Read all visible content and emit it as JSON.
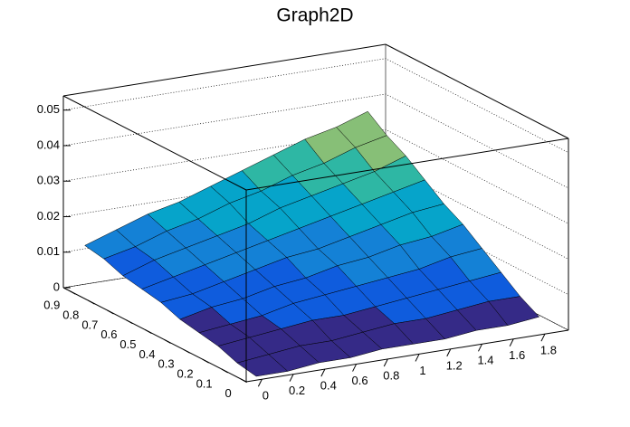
{
  "chart_data": {
    "type": "surface",
    "title": "Graph2D",
    "x": [
      0,
      0.2,
      0.4,
      0.6,
      0.8,
      1,
      1.2,
      1.4,
      1.6,
      1.8
    ],
    "y": [
      0,
      0.1,
      0.2,
      0.3,
      0.4,
      0.5,
      0.6,
      0.7,
      0.8,
      0.9
    ],
    "z": [
      [
        0,
        0,
        0.001,
        0.001,
        0.002,
        0.002,
        0.002,
        0.003,
        0.003,
        0.004
      ],
      [
        0.001,
        0.002,
        0.003,
        0.003,
        0.004,
        0.005,
        0.005,
        0.006,
        0.007,
        0.007
      ],
      [
        0.003,
        0.004,
        0.005,
        0.006,
        0.006,
        0.007,
        0.008,
        0.009,
        0.01,
        0.011
      ],
      [
        0.004,
        0.005,
        0.006,
        0.008,
        0.009,
        0.01,
        0.011,
        0.012,
        0.014,
        0.015
      ],
      [
        0.005,
        0.007,
        0.008,
        0.01,
        0.011,
        0.013,
        0.014,
        0.016,
        0.017,
        0.019
      ],
      [
        0.007,
        0.008,
        0.01,
        0.012,
        0.014,
        0.015,
        0.017,
        0.019,
        0.021,
        0.022
      ],
      [
        0.008,
        0.01,
        0.012,
        0.014,
        0.016,
        0.018,
        0.02,
        0.022,
        0.024,
        0.026
      ],
      [
        0.009,
        0.012,
        0.014,
        0.016,
        0.018,
        0.021,
        0.023,
        0.025,
        0.027,
        0.03
      ],
      [
        0.011,
        0.013,
        0.016,
        0.018,
        0.021,
        0.023,
        0.026,
        0.028,
        0.031,
        0.033
      ],
      [
        0.012,
        0.015,
        0.018,
        0.02,
        0.023,
        0.026,
        0.029,
        0.032,
        0.034,
        0.037
      ]
    ],
    "xlim": [
      -0.1,
      1.95
    ],
    "ylim": [
      -0.03,
      0.93
    ],
    "zlim": [
      0,
      0.054
    ],
    "xticks": [
      0,
      0.2,
      0.4,
      0.6,
      0.8,
      1,
      1.2,
      1.4,
      1.6,
      1.8
    ],
    "yticks": [
      0,
      0.1,
      0.2,
      0.3,
      0.4,
      0.5,
      0.6,
      0.7,
      0.8,
      0.9
    ],
    "zticks": [
      0,
      0.01,
      0.02,
      0.03,
      0.04,
      0.05
    ],
    "grid": true,
    "palette": [
      "#352a87",
      "#0f5cdd",
      "#1481d6",
      "#06a4ca",
      "#2eb7a4",
      "#87bf77",
      "#d1bb59",
      "#fec832",
      "#f9fb0e"
    ]
  }
}
